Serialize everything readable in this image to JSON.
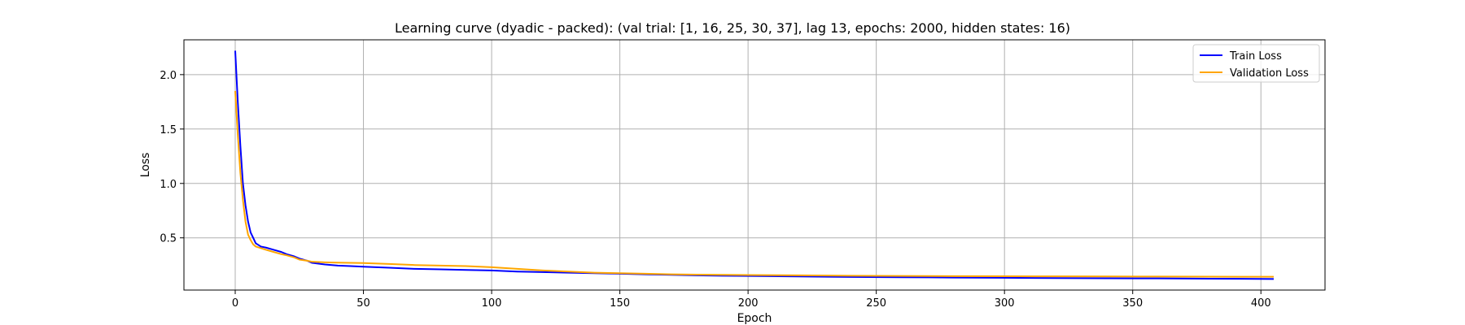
{
  "chart_data": {
    "type": "line",
    "title": "Learning curve (dyadic - packed): (val trial: [1, 16, 25, 30, 37], lag 13, epochs: 2000, hidden states: 16)",
    "xlabel": "Epoch",
    "ylabel": "Loss",
    "xlim": [
      -20,
      425
    ],
    "ylim": [
      0.02,
      2.32
    ],
    "xticks": [
      0,
      50,
      100,
      150,
      200,
      250,
      300,
      350,
      400
    ],
    "yticks": [
      0.5,
      1.0,
      1.5,
      2.0
    ],
    "xtick_labels": [
      "0",
      "50",
      "100",
      "150",
      "200",
      "250",
      "300",
      "350",
      "400"
    ],
    "ytick_labels": [
      "0.5",
      "1.0",
      "1.5",
      "2.0"
    ],
    "grid": true,
    "legend_position": "top-right",
    "series": [
      {
        "name": "Train Loss",
        "color": "#0000ff",
        "x": [
          0,
          1,
          2,
          3,
          4,
          5,
          6,
          7,
          8,
          10,
          12,
          15,
          18,
          20,
          23,
          25,
          28,
          30,
          35,
          40,
          45,
          50,
          60,
          70,
          80,
          90,
          100,
          110,
          120,
          130,
          140,
          150,
          160,
          170,
          180,
          190,
          200,
          220,
          240,
          260,
          280,
          300,
          320,
          340,
          360,
          380,
          405
        ],
        "values": [
          2.22,
          1.75,
          1.35,
          1.0,
          0.8,
          0.65,
          0.55,
          0.5,
          0.45,
          0.42,
          0.41,
          0.39,
          0.37,
          0.35,
          0.33,
          0.31,
          0.29,
          0.27,
          0.255,
          0.245,
          0.24,
          0.235,
          0.225,
          0.215,
          0.21,
          0.205,
          0.2,
          0.19,
          0.185,
          0.18,
          0.175,
          0.17,
          0.165,
          0.16,
          0.155,
          0.152,
          0.15,
          0.145,
          0.14,
          0.138,
          0.135,
          0.133,
          0.13,
          0.128,
          0.127,
          0.125,
          0.122
        ]
      },
      {
        "name": "Validation Loss",
        "color": "#ffa500",
        "x": [
          0,
          1,
          2,
          3,
          4,
          5,
          6,
          7,
          8,
          10,
          12,
          15,
          18,
          20,
          23,
          25,
          28,
          30,
          35,
          40,
          45,
          50,
          60,
          70,
          80,
          90,
          100,
          110,
          120,
          130,
          140,
          150,
          160,
          170,
          180,
          190,
          200,
          220,
          240,
          260,
          280,
          300,
          320,
          340,
          360,
          380,
          405
        ],
        "values": [
          1.85,
          1.45,
          1.1,
          0.85,
          0.65,
          0.53,
          0.48,
          0.44,
          0.42,
          0.405,
          0.39,
          0.37,
          0.35,
          0.34,
          0.32,
          0.3,
          0.29,
          0.28,
          0.275,
          0.272,
          0.27,
          0.268,
          0.26,
          0.25,
          0.245,
          0.24,
          0.23,
          0.215,
          0.2,
          0.19,
          0.18,
          0.175,
          0.17,
          0.165,
          0.162,
          0.16,
          0.158,
          0.155,
          0.152,
          0.15,
          0.148,
          0.147,
          0.146,
          0.145,
          0.144,
          0.143,
          0.142
        ]
      }
    ]
  }
}
